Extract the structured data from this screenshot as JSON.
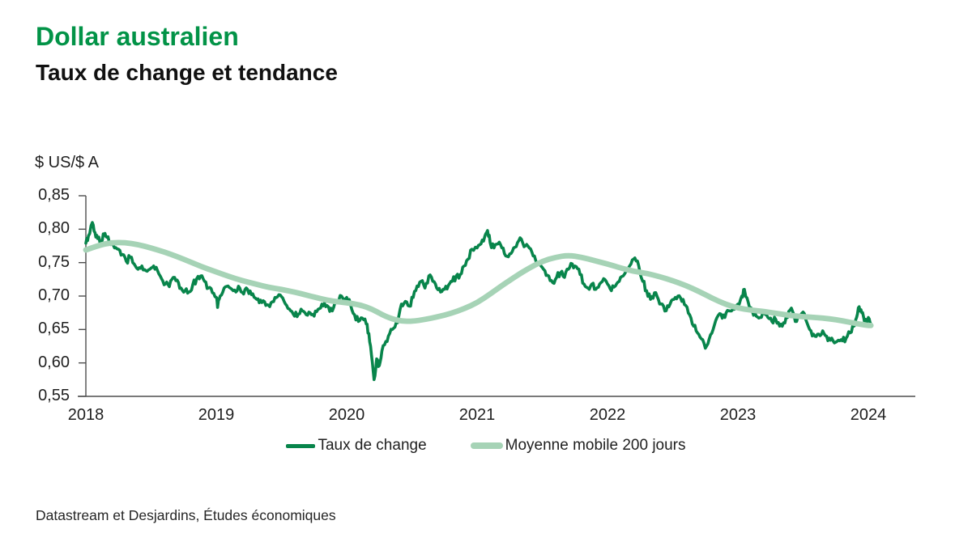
{
  "header": {
    "title": "Dollar australien",
    "subtitle": "Taux de change et tendance"
  },
  "source": "Datastream et Desjardins, Études économiques",
  "colors": {
    "title_green": "#029347",
    "rate_line": "#08854b",
    "ma_line": "#a6d3b6",
    "axis": "#4d4d4d",
    "text": "#1f1f1f"
  },
  "chart_data": {
    "type": "line",
    "title": "Dollar australien",
    "subtitle": "Taux de change et tendance",
    "ylabel": "$ US/$ A",
    "xlabel": "",
    "ylim": [
      0.55,
      0.85
    ],
    "x_range": [
      2018,
      2024.1
    ],
    "grid": false,
    "legend_position": "bottom",
    "y_ticks": [
      {
        "label": "0,85",
        "value": 0.85
      },
      {
        "label": "0,80",
        "value": 0.8
      },
      {
        "label": "0,75",
        "value": 0.75
      },
      {
        "label": "0,70",
        "value": 0.7
      },
      {
        "label": "0,65",
        "value": 0.65
      },
      {
        "label": "0,60",
        "value": 0.6
      },
      {
        "label": "0,55",
        "value": 0.55
      }
    ],
    "x_ticks": [
      {
        "label": "2018",
        "value": 2018
      },
      {
        "label": "2019",
        "value": 2019
      },
      {
        "label": "2020",
        "value": 2020
      },
      {
        "label": "2021",
        "value": 2021
      },
      {
        "label": "2022",
        "value": 2022
      },
      {
        "label": "2023",
        "value": 2023
      },
      {
        "label": "2024",
        "value": 2024
      }
    ],
    "series": [
      {
        "name": "Taux de change",
        "color": "#08854b",
        "width": 3.6,
        "jitter": 0.005,
        "smooth": false,
        "points": [
          [
            2018.0,
            0.779
          ],
          [
            2018.02,
            0.79
          ],
          [
            2018.05,
            0.81
          ],
          [
            2018.07,
            0.795
          ],
          [
            2018.09,
            0.786
          ],
          [
            2018.12,
            0.78
          ],
          [
            2018.14,
            0.792
          ],
          [
            2018.16,
            0.788
          ],
          [
            2018.19,
            0.777
          ],
          [
            2018.22,
            0.772
          ],
          [
            2018.25,
            0.77
          ],
          [
            2018.28,
            0.762
          ],
          [
            2018.31,
            0.752
          ],
          [
            2018.34,
            0.758
          ],
          [
            2018.37,
            0.748
          ],
          [
            2018.4,
            0.74
          ],
          [
            2018.43,
            0.745
          ],
          [
            2018.46,
            0.738
          ],
          [
            2018.49,
            0.74
          ],
          [
            2018.52,
            0.745
          ],
          [
            2018.55,
            0.738
          ],
          [
            2018.58,
            0.726
          ],
          [
            2018.61,
            0.718
          ],
          [
            2018.64,
            0.714
          ],
          [
            2018.67,
            0.728
          ],
          [
            2018.7,
            0.724
          ],
          [
            2018.73,
            0.712
          ],
          [
            2018.76,
            0.708
          ],
          [
            2018.79,
            0.706
          ],
          [
            2018.82,
            0.717
          ],
          [
            2018.85,
            0.726
          ],
          [
            2018.88,
            0.73
          ],
          [
            2018.91,
            0.722
          ],
          [
            2018.94,
            0.712
          ],
          [
            2018.97,
            0.705
          ],
          [
            2019.0,
            0.698
          ],
          [
            2019.01,
            0.683
          ],
          [
            2019.03,
            0.7
          ],
          [
            2019.06,
            0.712
          ],
          [
            2019.09,
            0.715
          ],
          [
            2019.12,
            0.71
          ],
          [
            2019.15,
            0.706
          ],
          [
            2019.18,
            0.712
          ],
          [
            2019.21,
            0.703
          ],
          [
            2019.24,
            0.71
          ],
          [
            2019.27,
            0.702
          ],
          [
            2019.3,
            0.697
          ],
          [
            2019.33,
            0.69
          ],
          [
            2019.36,
            0.693
          ],
          [
            2019.39,
            0.687
          ],
          [
            2019.42,
            0.69
          ],
          [
            2019.45,
            0.698
          ],
          [
            2019.48,
            0.702
          ],
          [
            2019.51,
            0.697
          ],
          [
            2019.54,
            0.686
          ],
          [
            2019.57,
            0.678
          ],
          [
            2019.6,
            0.67
          ],
          [
            2019.63,
            0.673
          ],
          [
            2019.66,
            0.678
          ],
          [
            2019.69,
            0.672
          ],
          [
            2019.72,
            0.675
          ],
          [
            2019.75,
            0.67
          ],
          [
            2019.78,
            0.68
          ],
          [
            2019.81,
            0.688
          ],
          [
            2019.84,
            0.684
          ],
          [
            2019.87,
            0.677
          ],
          [
            2019.9,
            0.683
          ],
          [
            2019.93,
            0.69
          ],
          [
            2019.96,
            0.7
          ],
          [
            2020.0,
            0.698
          ],
          [
            2020.03,
            0.687
          ],
          [
            2020.06,
            0.672
          ],
          [
            2020.09,
            0.662
          ],
          [
            2020.12,
            0.667
          ],
          [
            2020.15,
            0.658
          ],
          [
            2020.17,
            0.644
          ],
          [
            2020.19,
            0.612
          ],
          [
            2020.21,
            0.575
          ],
          [
            2020.23,
            0.606
          ],
          [
            2020.25,
            0.596
          ],
          [
            2020.27,
            0.618
          ],
          [
            2020.3,
            0.632
          ],
          [
            2020.33,
            0.644
          ],
          [
            2020.36,
            0.652
          ],
          [
            2020.39,
            0.66
          ],
          [
            2020.42,
            0.688
          ],
          [
            2020.45,
            0.692
          ],
          [
            2020.48,
            0.685
          ],
          [
            2020.51,
            0.698
          ],
          [
            2020.54,
            0.715
          ],
          [
            2020.57,
            0.722
          ],
          [
            2020.6,
            0.712
          ],
          [
            2020.63,
            0.73
          ],
          [
            2020.66,
            0.722
          ],
          [
            2020.69,
            0.712
          ],
          [
            2020.72,
            0.706
          ],
          [
            2020.75,
            0.71
          ],
          [
            2020.78,
            0.716
          ],
          [
            2020.81,
            0.722
          ],
          [
            2020.84,
            0.73
          ],
          [
            2020.87,
            0.732
          ],
          [
            2020.9,
            0.745
          ],
          [
            2020.93,
            0.755
          ],
          [
            2020.96,
            0.77
          ],
          [
            2021.0,
            0.772
          ],
          [
            2021.03,
            0.778
          ],
          [
            2021.06,
            0.79
          ],
          [
            2021.08,
            0.798
          ],
          [
            2021.1,
            0.78
          ],
          [
            2021.13,
            0.772
          ],
          [
            2021.16,
            0.778
          ],
          [
            2021.19,
            0.772
          ],
          [
            2021.22,
            0.76
          ],
          [
            2021.25,
            0.763
          ],
          [
            2021.28,
            0.772
          ],
          [
            2021.31,
            0.78
          ],
          [
            2021.34,
            0.785
          ],
          [
            2021.37,
            0.775
          ],
          [
            2021.4,
            0.772
          ],
          [
            2021.43,
            0.76
          ],
          [
            2021.46,
            0.748
          ],
          [
            2021.49,
            0.745
          ],
          [
            2021.52,
            0.738
          ],
          [
            2021.55,
            0.73
          ],
          [
            2021.58,
            0.72
          ],
          [
            2021.61,
            0.728
          ],
          [
            2021.64,
            0.735
          ],
          [
            2021.67,
            0.728
          ],
          [
            2021.7,
            0.74
          ],
          [
            2021.73,
            0.748
          ],
          [
            2021.76,
            0.744
          ],
          [
            2021.79,
            0.732
          ],
          [
            2021.82,
            0.718
          ],
          [
            2021.85,
            0.712
          ],
          [
            2021.88,
            0.718
          ],
          [
            2021.91,
            0.71
          ],
          [
            2021.94,
            0.718
          ],
          [
            2021.97,
            0.726
          ],
          [
            2022.0,
            0.718
          ],
          [
            2022.03,
            0.708
          ],
          [
            2022.06,
            0.715
          ],
          [
            2022.09,
            0.722
          ],
          [
            2022.12,
            0.73
          ],
          [
            2022.15,
            0.74
          ],
          [
            2022.18,
            0.748
          ],
          [
            2022.21,
            0.757
          ],
          [
            2022.24,
            0.745
          ],
          [
            2022.27,
            0.722
          ],
          [
            2022.3,
            0.708
          ],
          [
            2022.33,
            0.695
          ],
          [
            2022.36,
            0.705
          ],
          [
            2022.39,
            0.695
          ],
          [
            2022.42,
            0.688
          ],
          [
            2022.45,
            0.678
          ],
          [
            2022.48,
            0.688
          ],
          [
            2022.51,
            0.695
          ],
          [
            2022.54,
            0.7
          ],
          [
            2022.57,
            0.692
          ],
          [
            2022.6,
            0.686
          ],
          [
            2022.63,
            0.672
          ],
          [
            2022.66,
            0.655
          ],
          [
            2022.69,
            0.645
          ],
          [
            2022.72,
            0.636
          ],
          [
            2022.75,
            0.622
          ],
          [
            2022.78,
            0.636
          ],
          [
            2022.81,
            0.65
          ],
          [
            2022.84,
            0.668
          ],
          [
            2022.87,
            0.673
          ],
          [
            2022.9,
            0.668
          ],
          [
            2022.93,
            0.678
          ],
          [
            2022.96,
            0.68
          ],
          [
            2023.0,
            0.688
          ],
          [
            2023.03,
            0.7
          ],
          [
            2023.05,
            0.71
          ],
          [
            2023.08,
            0.69
          ],
          [
            2023.11,
            0.678
          ],
          [
            2023.14,
            0.67
          ],
          [
            2023.17,
            0.668
          ],
          [
            2023.2,
            0.676
          ],
          [
            2023.23,
            0.668
          ],
          [
            2023.26,
            0.662
          ],
          [
            2023.29,
            0.665
          ],
          [
            2023.32,
            0.655
          ],
          [
            2023.35,
            0.66
          ],
          [
            2023.38,
            0.668
          ],
          [
            2023.41,
            0.682
          ],
          [
            2023.44,
            0.662
          ],
          [
            2023.47,
            0.67
          ],
          [
            2023.5,
            0.676
          ],
          [
            2023.53,
            0.66
          ],
          [
            2023.56,
            0.648
          ],
          [
            2023.59,
            0.64
          ],
          [
            2023.62,
            0.643
          ],
          [
            2023.65,
            0.648
          ],
          [
            2023.68,
            0.64
          ],
          [
            2023.71,
            0.634
          ],
          [
            2023.74,
            0.63
          ],
          [
            2023.77,
            0.634
          ],
          [
            2023.8,
            0.633
          ],
          [
            2023.83,
            0.637
          ],
          [
            2023.86,
            0.645
          ],
          [
            2023.89,
            0.655
          ],
          [
            2023.91,
            0.668
          ],
          [
            2023.93,
            0.684
          ],
          [
            2023.95,
            0.675
          ],
          [
            2023.97,
            0.662
          ],
          [
            2024.0,
            0.668
          ],
          [
            2024.02,
            0.658
          ]
        ]
      },
      {
        "name": "Moyenne mobile 200 jours",
        "color": "#a6d3b6",
        "width": 6.8,
        "jitter": 0,
        "smooth": true,
        "points": [
          [
            2018.0,
            0.769
          ],
          [
            2018.1,
            0.776
          ],
          [
            2018.2,
            0.78
          ],
          [
            2018.3,
            0.78
          ],
          [
            2018.4,
            0.777
          ],
          [
            2018.5,
            0.772
          ],
          [
            2018.6,
            0.766
          ],
          [
            2018.7,
            0.759
          ],
          [
            2018.8,
            0.751
          ],
          [
            2018.9,
            0.743
          ],
          [
            2019.0,
            0.736
          ],
          [
            2019.1,
            0.729
          ],
          [
            2019.2,
            0.723
          ],
          [
            2019.3,
            0.718
          ],
          [
            2019.4,
            0.713
          ],
          [
            2019.5,
            0.71
          ],
          [
            2019.6,
            0.706
          ],
          [
            2019.7,
            0.701
          ],
          [
            2019.8,
            0.696
          ],
          [
            2019.9,
            0.692
          ],
          [
            2020.0,
            0.69
          ],
          [
            2020.1,
            0.687
          ],
          [
            2020.2,
            0.68
          ],
          [
            2020.3,
            0.669
          ],
          [
            2020.4,
            0.663
          ],
          [
            2020.5,
            0.662
          ],
          [
            2020.6,
            0.665
          ],
          [
            2020.7,
            0.669
          ],
          [
            2020.8,
            0.674
          ],
          [
            2020.9,
            0.681
          ],
          [
            2021.0,
            0.69
          ],
          [
            2021.1,
            0.703
          ],
          [
            2021.2,
            0.717
          ],
          [
            2021.3,
            0.73
          ],
          [
            2021.4,
            0.742
          ],
          [
            2021.5,
            0.752
          ],
          [
            2021.6,
            0.758
          ],
          [
            2021.7,
            0.761
          ],
          [
            2021.8,
            0.758
          ],
          [
            2021.9,
            0.753
          ],
          [
            2022.0,
            0.748
          ],
          [
            2022.1,
            0.742
          ],
          [
            2022.2,
            0.737
          ],
          [
            2022.3,
            0.734
          ],
          [
            2022.4,
            0.729
          ],
          [
            2022.5,
            0.723
          ],
          [
            2022.6,
            0.716
          ],
          [
            2022.7,
            0.707
          ],
          [
            2022.8,
            0.697
          ],
          [
            2022.9,
            0.688
          ],
          [
            2023.0,
            0.682
          ],
          [
            2023.1,
            0.679
          ],
          [
            2023.2,
            0.677
          ],
          [
            2023.3,
            0.674
          ],
          [
            2023.4,
            0.671
          ],
          [
            2023.5,
            0.669
          ],
          [
            2023.6,
            0.668
          ],
          [
            2023.7,
            0.666
          ],
          [
            2023.8,
            0.663
          ],
          [
            2023.9,
            0.659
          ],
          [
            2024.0,
            0.656
          ],
          [
            2024.02,
            0.656
          ]
        ]
      }
    ]
  }
}
